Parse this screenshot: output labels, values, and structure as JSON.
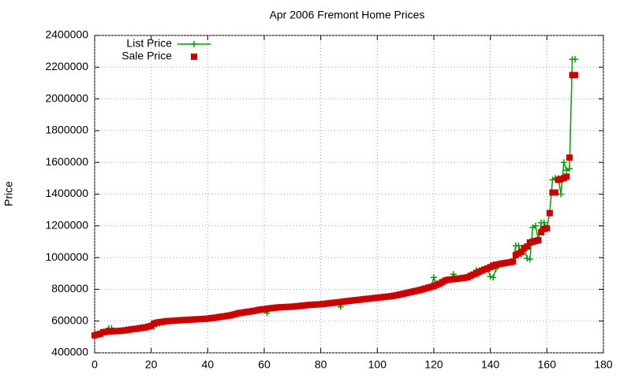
{
  "chart_data": {
    "type": "line",
    "title": "Apr 2006 Fremont Home Prices",
    "y_label": "Price",
    "xlim": [
      0,
      180
    ],
    "xticks": [
      0,
      20,
      40,
      60,
      80,
      100,
      120,
      140,
      160,
      180
    ],
    "ylim": [
      400000,
      2400000
    ],
    "yticks": [
      400000,
      600000,
      800000,
      1000000,
      1200000,
      1400000,
      1600000,
      1800000,
      2000000,
      2200000,
      2400000
    ],
    "grid": true,
    "legend": "top-left",
    "x": [
      0,
      1,
      2,
      3,
      4,
      5,
      6,
      7,
      8,
      9,
      10,
      11,
      12,
      13,
      14,
      15,
      16,
      17,
      18,
      19,
      20,
      21,
      22,
      23,
      24,
      25,
      26,
      27,
      28,
      29,
      30,
      31,
      32,
      33,
      34,
      35,
      36,
      37,
      38,
      39,
      40,
      41,
      42,
      43,
      44,
      45,
      46,
      47,
      48,
      49,
      50,
      51,
      52,
      53,
      54,
      55,
      56,
      57,
      58,
      59,
      60,
      61,
      62,
      63,
      64,
      65,
      66,
      67,
      68,
      69,
      70,
      71,
      72,
      73,
      74,
      75,
      76,
      77,
      78,
      79,
      80,
      81,
      82,
      83,
      84,
      85,
      86,
      87,
      88,
      89,
      90,
      91,
      92,
      93,
      94,
      95,
      96,
      97,
      98,
      99,
      100,
      101,
      102,
      103,
      104,
      105,
      106,
      107,
      108,
      109,
      110,
      111,
      112,
      113,
      114,
      115,
      116,
      117,
      118,
      119,
      120,
      121,
      122,
      123,
      124,
      125,
      126,
      127,
      128,
      129,
      130,
      131,
      132,
      133,
      134,
      135,
      136,
      137,
      138,
      139,
      140,
      141,
      142,
      143,
      144,
      145,
      146,
      147,
      148,
      149,
      150,
      151,
      152,
      153,
      154,
      155,
      156,
      157,
      158,
      159,
      160,
      161,
      162,
      163,
      164,
      165,
      166,
      167,
      168,
      169,
      170
    ],
    "series": [
      {
        "name": "List Price",
        "color": "#00a000",
        "style": "linespoints",
        "values": [
          510000,
          515000,
          520000,
          530000,
          532000,
          555000,
          555000,
          536000,
          537000,
          538000,
          540000,
          542000,
          545000,
          548000,
          550000,
          552000,
          555000,
          558000,
          560000,
          565000,
          575000,
          565000,
          580000,
          585000,
          595000,
          598000,
          600000,
          601000,
          602000,
          603000,
          605000,
          606000,
          607000,
          608000,
          609000,
          610000,
          611000,
          612000,
          613000,
          614000,
          615000,
          618000,
          620000,
          622000,
          625000,
          628000,
          630000,
          633000,
          636000,
          640000,
          645000,
          650000,
          652000,
          655000,
          658000,
          660000,
          663000,
          666000,
          670000,
          673000,
          675000,
          650000,
          680000,
          682000,
          684000,
          686000,
          687000,
          688000,
          689000,
          690000,
          691000,
          692000,
          694000,
          696000,
          698000,
          700000,
          702000,
          703000,
          704000,
          705000,
          706000,
          708000,
          710000,
          712000,
          714000,
          716000,
          718000,
          690000,
          722000,
          725000,
          727000,
          729000,
          731000,
          733000,
          735000,
          737000,
          739000,
          741000,
          743000,
          745000,
          747000,
          749000,
          751000,
          753000,
          755000,
          757000,
          760000,
          763000,
          767000,
          771000,
          775000,
          779000,
          783000,
          787000,
          791000,
          795000,
          800000,
          805000,
          810000,
          815000,
          875000,
          828000,
          835000,
          845000,
          855000,
          860000,
          862000,
          895000,
          866000,
          868000,
          870000,
          873000,
          876000,
          885000,
          893000,
          920000,
          910000,
          918000,
          925000,
          932000,
          880000,
          875000,
          930000,
          958000,
          962000,
          965000,
          968000,
          970000,
          975000,
          1075000,
          1075000,
          1035000,
          1060000,
          995000,
          990000,
          1190000,
          1200000,
          1110000,
          1220000,
          1220000,
          1185000,
          1280000,
          1490000,
          1500000,
          1500000,
          1400000,
          1600000,
          1550000,
          1560000,
          2250000,
          2250000
        ]
      },
      {
        "name": "Sale Price",
        "color": "#cc0000",
        "style": "points",
        "values": [
          510000,
          515000,
          520000,
          530000,
          532000,
          534000,
          535000,
          536000,
          537000,
          538000,
          540000,
          542000,
          545000,
          548000,
          550000,
          552000,
          555000,
          558000,
          560000,
          565000,
          570000,
          585000,
          590000,
          593000,
          595000,
          598000,
          600000,
          601000,
          602000,
          603000,
          605000,
          606000,
          607000,
          608000,
          609000,
          610000,
          611000,
          612000,
          613000,
          614000,
          615000,
          618000,
          620000,
          622000,
          625000,
          628000,
          630000,
          633000,
          636000,
          640000,
          645000,
          650000,
          652000,
          655000,
          658000,
          660000,
          663000,
          666000,
          670000,
          673000,
          675000,
          678000,
          680000,
          682000,
          684000,
          686000,
          687000,
          688000,
          689000,
          690000,
          691000,
          692000,
          694000,
          696000,
          698000,
          700000,
          702000,
          703000,
          704000,
          705000,
          706000,
          708000,
          710000,
          712000,
          714000,
          716000,
          718000,
          720000,
          722000,
          725000,
          727000,
          729000,
          731000,
          733000,
          735000,
          737000,
          739000,
          741000,
          743000,
          745000,
          747000,
          749000,
          751000,
          753000,
          755000,
          757000,
          760000,
          763000,
          767000,
          771000,
          775000,
          779000,
          783000,
          787000,
          791000,
          795000,
          800000,
          805000,
          810000,
          815000,
          820000,
          828000,
          835000,
          845000,
          855000,
          860000,
          862000,
          864000,
          866000,
          868000,
          870000,
          873000,
          876000,
          885000,
          893000,
          900000,
          910000,
          918000,
          925000,
          932000,
          940000,
          950000,
          955000,
          958000,
          962000,
          965000,
          968000,
          970000,
          975000,
          1015000,
          1025000,
          1035000,
          1060000,
          1070000,
          1095000,
          1100000,
          1105000,
          1110000,
          1160000,
          1180000,
          1185000,
          1280000,
          1410000,
          1410000,
          1490000,
          1495000,
          1500000,
          1510000,
          1630000,
          2150000,
          2150000
        ]
      }
    ]
  }
}
